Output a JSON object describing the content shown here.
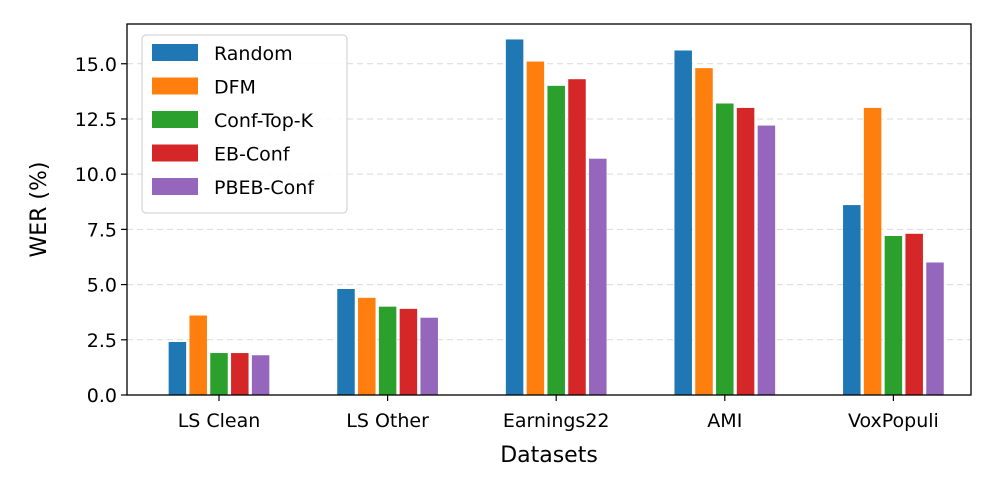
{
  "chart_data": {
    "type": "bar",
    "title": "",
    "xlabel": "Datasets",
    "ylabel": "WER (%)",
    "ylim": [
      0,
      16.8
    ],
    "yticks": [
      0.0,
      2.5,
      5.0,
      7.5,
      10.0,
      12.5,
      15.0
    ],
    "ytick_labels": [
      "0.0",
      "2.5",
      "5.0",
      "7.5",
      "10.0",
      "12.5",
      "15.0"
    ],
    "grid": "horizontal-dashed",
    "legend_position": "top-left",
    "categories": [
      "LS Clean",
      "LS Other",
      "Earnings22",
      "AMI",
      "VoxPopuli"
    ],
    "series": [
      {
        "name": "Random",
        "color": "#1f77b4",
        "values": [
          2.4,
          4.8,
          16.1,
          15.6,
          8.6
        ]
      },
      {
        "name": "DFM",
        "color": "#ff7f0e",
        "values": [
          3.6,
          4.4,
          15.1,
          14.8,
          13.0
        ]
      },
      {
        "name": "Conf-Top-K",
        "color": "#2ca02c",
        "values": [
          1.9,
          4.0,
          14.0,
          13.2,
          7.2
        ]
      },
      {
        "name": "EB-Conf",
        "color": "#d62728",
        "values": [
          1.9,
          3.9,
          14.3,
          13.0,
          7.3
        ]
      },
      {
        "name": "PBEB-Conf",
        "color": "#9467bd",
        "values": [
          1.8,
          3.5,
          10.7,
          12.2,
          6.0
        ]
      }
    ]
  }
}
